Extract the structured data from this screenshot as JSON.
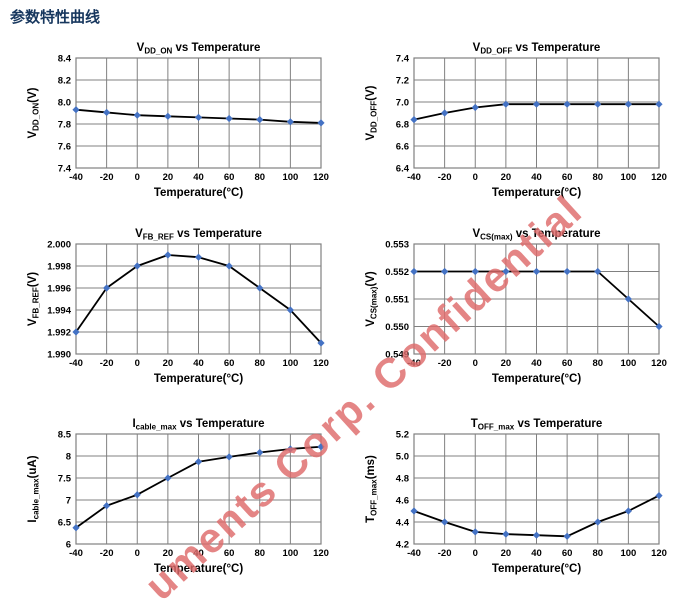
{
  "page": {
    "heading": "参数特性曲线"
  },
  "watermark": {
    "text": "uments Corp. Confidential"
  },
  "colors": {
    "heading": "#17375e",
    "line": "#000000",
    "marker": "#4472c4",
    "grid": "#808080",
    "text": "#000000",
    "watermark": "#de6a6a"
  },
  "chart_data": [
    {
      "type": "line",
      "title": "V_DD_ON vs Temperature",
      "title_parts": {
        "sym": "V",
        "sub": "DD_ON",
        "rest": " vs Temperature"
      },
      "ylabel": "V_DD_ON(V)",
      "ylabel_parts": {
        "sym": "V",
        "sub": "DD_ON",
        "unit": "(V)"
      },
      "xlabel": "Temperature(°C)",
      "x": [
        -40,
        -20,
        0,
        20,
        40,
        60,
        80,
        100,
        120
      ],
      "values": [
        7.93,
        7.905,
        7.88,
        7.87,
        7.86,
        7.85,
        7.84,
        7.82,
        7.81
      ],
      "ylim": [
        7.4,
        8.4
      ],
      "yticks": [
        "7.4",
        "7.6",
        "7.8",
        "8.0",
        "8.2",
        "8.4"
      ],
      "xticks": [
        "-40",
        "-20",
        "0",
        "20",
        "40",
        "60",
        "80",
        "100",
        "120"
      ],
      "grid": true,
      "legend": "none",
      "marker": "diamond"
    },
    {
      "type": "line",
      "title": "V_DD_OFF vs Temperature",
      "title_parts": {
        "sym": "V",
        "sub": "DD_OFF",
        "rest": " vs Temperature"
      },
      "ylabel": "V_DD_OFF(V)",
      "ylabel_parts": {
        "sym": "V",
        "sub": "DD_OFF",
        "unit": "(V)"
      },
      "xlabel": "Temperature(°C)",
      "x": [
        -40,
        -20,
        0,
        20,
        40,
        60,
        80,
        100,
        120
      ],
      "values": [
        6.84,
        6.9,
        6.95,
        6.98,
        6.98,
        6.98,
        6.98,
        6.98,
        6.98
      ],
      "ylim": [
        6.4,
        7.4
      ],
      "yticks": [
        "6.4",
        "6.6",
        "6.8",
        "7.0",
        "7.2",
        "7.4"
      ],
      "xticks": [
        "-40",
        "-20",
        "0",
        "20",
        "40",
        "60",
        "80",
        "100",
        "120"
      ],
      "grid": true,
      "legend": "none",
      "marker": "diamond"
    },
    {
      "type": "line",
      "title": "V_FB_REF vs Temperature",
      "title_parts": {
        "sym": "V",
        "sub": "FB_REF",
        "rest": " vs Temperature"
      },
      "ylabel": "V_FB_REF(V)",
      "ylabel_parts": {
        "sym": "V",
        "sub": "FB_REF",
        "unit": "(V)"
      },
      "xlabel": "Temperature(°C)",
      "x": [
        -40,
        -20,
        0,
        20,
        40,
        60,
        80,
        100,
        120
      ],
      "values": [
        1.992,
        1.996,
        1.998,
        1.999,
        1.9988,
        1.998,
        1.996,
        1.994,
        1.991
      ],
      "ylim": [
        1.99,
        2.0
      ],
      "yticks": [
        "1.990",
        "1.992",
        "1.994",
        "1.996",
        "1.998",
        "2.000"
      ],
      "xticks": [
        "-40",
        "-20",
        "0",
        "20",
        "40",
        "60",
        "80",
        "100",
        "120"
      ],
      "grid": true,
      "legend": "none",
      "marker": "diamond"
    },
    {
      "type": "line",
      "title": "V_CS(max) vs Temperature",
      "title_parts": {
        "sym": "V",
        "sub": "CS(max)",
        "rest": " vs Temperature"
      },
      "ylabel": "V_CS(max)(V)",
      "ylabel_parts": {
        "sym": "V",
        "sub": "CS(max)",
        "unit": "(V)"
      },
      "xlabel": "Temperature(°C)",
      "x": [
        -40,
        -20,
        0,
        20,
        40,
        60,
        80,
        100,
        120
      ],
      "values": [
        0.552,
        0.552,
        0.552,
        0.552,
        0.552,
        0.552,
        0.552,
        0.551,
        0.55
      ],
      "ylim": [
        0.549,
        0.553
      ],
      "yticks": [
        "0.549",
        "0.550",
        "0.551",
        "0.552",
        "0.553"
      ],
      "xticks": [
        "-40",
        "-20",
        "0",
        "20",
        "40",
        "60",
        "80",
        "100",
        "120"
      ],
      "grid": true,
      "legend": "none",
      "marker": "diamond"
    },
    {
      "type": "line",
      "title": "I_cable_max vs Temperature",
      "title_parts": {
        "sym": "I",
        "sub": "cable_max",
        "rest": " vs Temperature"
      },
      "ylabel": "I_cable_max(uA)",
      "ylabel_parts": {
        "sym": "I",
        "sub": "cable_max",
        "unit": "(uA)"
      },
      "xlabel": "Temperature(°C)",
      "x": [
        -40,
        -20,
        0,
        20,
        40,
        60,
        80,
        100,
        120
      ],
      "values": [
        6.37,
        6.87,
        7.12,
        7.5,
        7.87,
        7.98,
        8.08,
        8.16,
        8.21
      ],
      "ylim": [
        6,
        8.5
      ],
      "yticks": [
        "6",
        "6.5",
        "7",
        "7.5",
        "8",
        "8.5"
      ],
      "xticks": [
        "-40",
        "-20",
        "0",
        "20",
        "40",
        "60",
        "80",
        "100",
        "120"
      ],
      "grid": true,
      "legend": "none",
      "marker": "diamond"
    },
    {
      "type": "line",
      "title": "T_OFF_max vs Temperature",
      "title_parts": {
        "sym": "T",
        "sub": "OFF_max",
        "rest": " vs Temperature"
      },
      "ylabel": "T_OFF_max(ms)",
      "ylabel_parts": {
        "sym": "T",
        "sub": "OFF_max",
        "unit": "(ms)"
      },
      "xlabel": "Temperature(°C)",
      "x": [
        -40,
        -20,
        0,
        20,
        40,
        60,
        80,
        100,
        120
      ],
      "values": [
        4.5,
        4.4,
        4.31,
        4.29,
        4.28,
        4.27,
        4.4,
        4.5,
        4.64
      ],
      "ylim": [
        4.2,
        5.2
      ],
      "yticks": [
        "4.2",
        "4.4",
        "4.6",
        "4.8",
        "5.0",
        "5.2"
      ],
      "xticks": [
        "-40",
        "-20",
        "0",
        "20",
        "40",
        "60",
        "80",
        "100",
        "120"
      ],
      "grid": true,
      "legend": "none",
      "marker": "diamond"
    }
  ]
}
